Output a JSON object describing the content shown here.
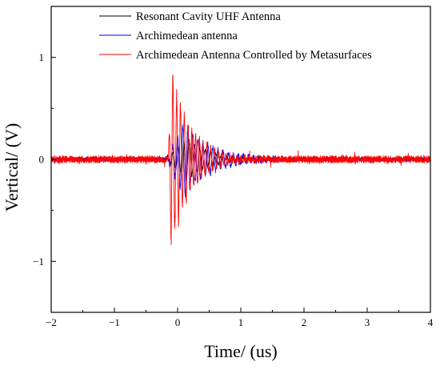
{
  "chart_data": {
    "type": "line",
    "title": "",
    "xlabel": "Time/ (us)",
    "ylabel": "Vertical/ (V)",
    "xlim": [
      -2,
      4
    ],
    "ylim": [
      -1.5,
      1.5
    ],
    "x_ticks": [
      -2,
      -1,
      0,
      1,
      2,
      3,
      4
    ],
    "y_ticks": [
      -1,
      0,
      1
    ],
    "x_tick_labels": [
      "−2",
      "−1",
      "0",
      "1",
      "2",
      "3",
      "4"
    ],
    "y_tick_labels": [
      "−1",
      "0",
      "1"
    ],
    "legend_position": "top-right",
    "grid": false,
    "noise_band_start_x": -2,
    "series": [
      {
        "name": "Resonant Cavity UHF Antenna",
        "color": "#000000",
        "noise_amplitude": 0.012,
        "burst": {
          "start": -0.18,
          "peak": 0.15,
          "amplitude": 0.22,
          "decay": 0.35,
          "period": 0.085
        }
      },
      {
        "name": "Archimedean antenna",
        "color": "#0000ff",
        "noise_amplitude": 0.02,
        "burst": {
          "start": -0.18,
          "peak": 0.1,
          "amplitude": 0.38,
          "decay": 0.45,
          "period": 0.08
        }
      },
      {
        "name": "Archimedean Antenna Controlled by Metasurfaces",
        "color": "#ff0000",
        "noise_amplitude": 0.035,
        "burst": {
          "start": -0.15,
          "peak": -0.1,
          "amplitude": 0.95,
          "decay": 0.3,
          "period": 0.06
        }
      }
    ]
  }
}
